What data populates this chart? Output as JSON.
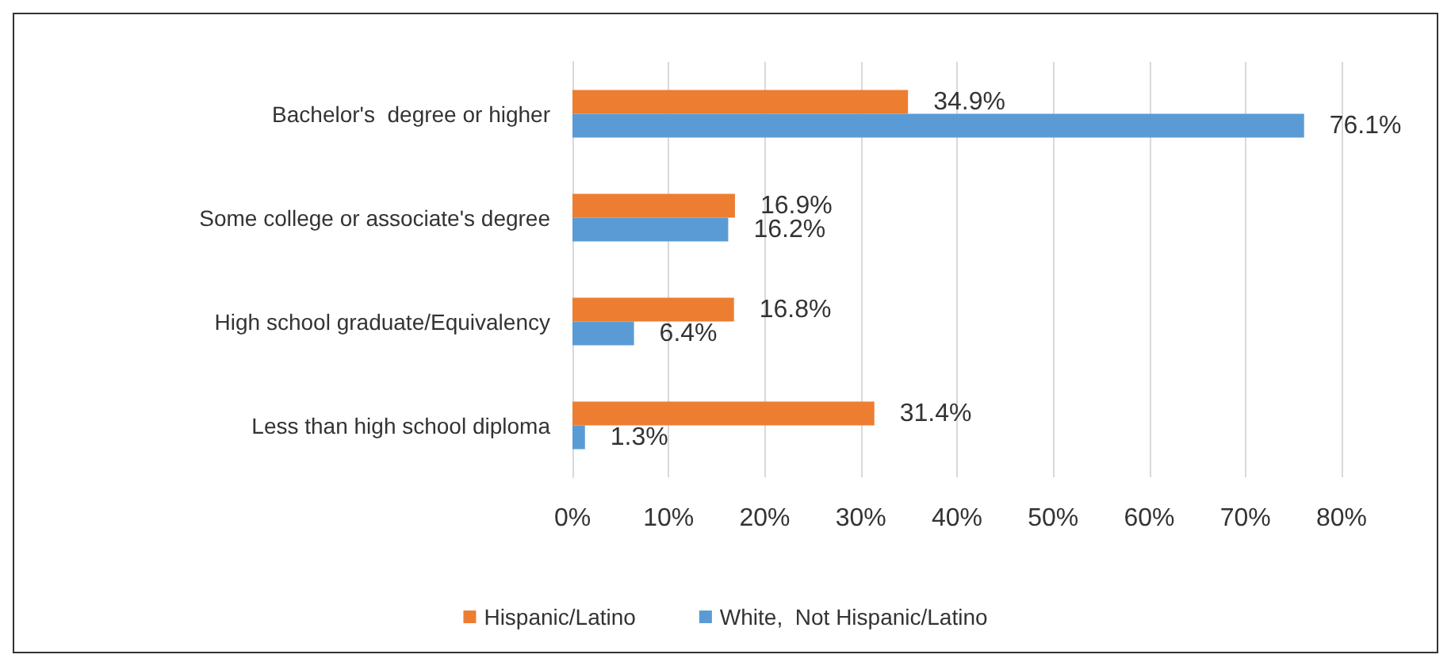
{
  "chart_data": {
    "type": "bar",
    "orientation": "horizontal",
    "categories": [
      "Bachelor's  degree or higher",
      "Some college or associate's degree",
      "High school graduate/Equivalency",
      "Less than high school diploma"
    ],
    "series": [
      {
        "name": "Hispanic/Latino",
        "color": "#ed7d31",
        "values": [
          34.9,
          16.9,
          16.8,
          31.4
        ],
        "value_labels": [
          "34.9%",
          "16.9%",
          "16.8%",
          "31.4%"
        ]
      },
      {
        "name": "White,  Not Hispanic/Latino",
        "color": "#5b9bd5",
        "values": [
          76.1,
          16.2,
          6.4,
          1.3
        ],
        "value_labels": [
          "76.1%",
          "16.2%",
          "6.4%",
          "1.3%"
        ]
      }
    ],
    "xlim": [
      0,
      80
    ],
    "xticks": [
      {
        "value": 0,
        "label": "0%"
      },
      {
        "value": 10,
        "label": "10%"
      },
      {
        "value": 20,
        "label": "20%"
      },
      {
        "value": 30,
        "label": "30%"
      },
      {
        "value": 40,
        "label": "40%"
      },
      {
        "value": 50,
        "label": "50%"
      },
      {
        "value": 60,
        "label": "60%"
      },
      {
        "value": 70,
        "label": "70%"
      },
      {
        "value": 80,
        "label": "80%"
      }
    ],
    "grid": "x",
    "legend": "bottom"
  }
}
